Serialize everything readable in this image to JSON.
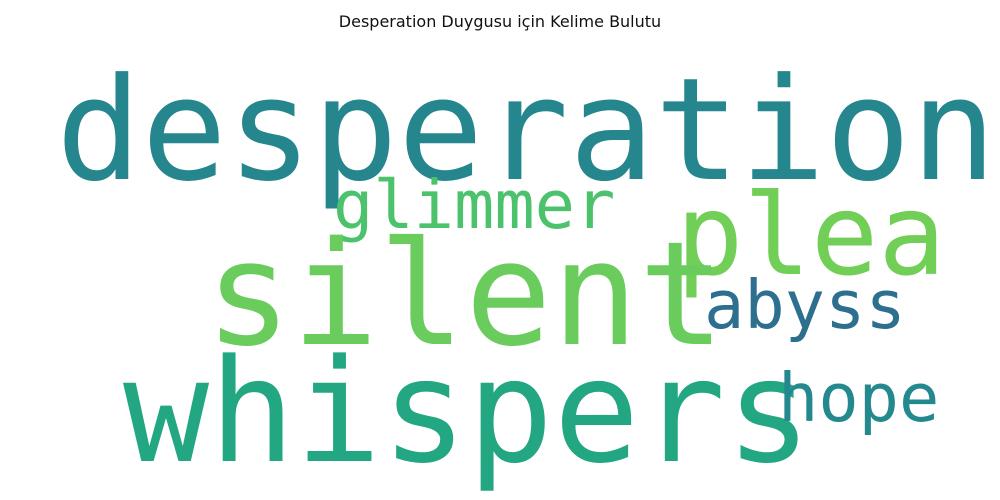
{
  "title": "Desperation Duygusu için Kelime Bulutu",
  "words": {
    "desperation": {
      "text": "desperation",
      "color": "#25868e"
    },
    "glimmer": {
      "text": "glimmer",
      "color": "#4cc26c"
    },
    "plea": {
      "text": "plea",
      "color": "#71ce56"
    },
    "silent": {
      "text": "silent",
      "color": "#6acc5c"
    },
    "abyss": {
      "text": "abyss",
      "color": "#2d6f8e"
    },
    "whispers": {
      "text": "whispers",
      "color": "#22a782"
    },
    "hope": {
      "text": "hope",
      "color": "#23898e"
    }
  }
}
